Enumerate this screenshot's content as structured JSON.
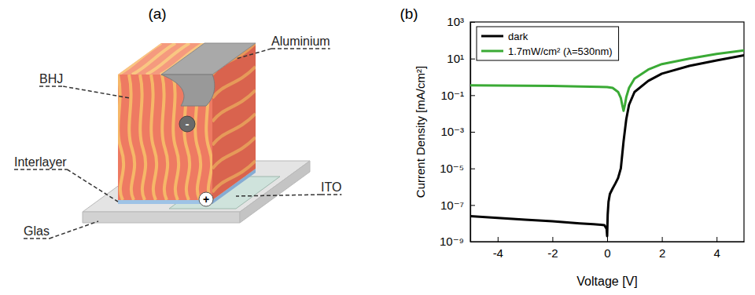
{
  "diagram": {
    "label": "(a)",
    "parts": {
      "bhj": "BHJ",
      "cathode": "Aluminium",
      "interlayer": "Interlayer",
      "anode": "ITO",
      "substrate": "Glas"
    },
    "charges": {
      "cathode": "-",
      "anode": "+"
    }
  },
  "chart_data": {
    "type": "line",
    "label": "(b)",
    "x_label": "Voltage [V]",
    "y_label": "Current Density [mA/cm²]",
    "log": "y",
    "legend": "upper left",
    "xlim": [
      -5,
      5
    ],
    "xticks": [
      -4,
      -2,
      0,
      2,
      4
    ],
    "ylim": [
      1e-09,
      1000
    ],
    "yticks": [
      {
        "value": 1e-09,
        "label": "10⁻⁹"
      },
      {
        "value": 1e-07,
        "label": "10⁻⁷"
      },
      {
        "value": 1e-05,
        "label": "10⁻⁵"
      },
      {
        "value": 0.001,
        "label": "10⁻³"
      },
      {
        "value": 0.1,
        "label": "10⁻¹"
      },
      {
        "value": 10,
        "label": "10¹"
      },
      {
        "value": 1000,
        "label": "10³"
      }
    ],
    "series": [
      {
        "name": "dark",
        "color": "#000000",
        "x": [
          -5,
          -4,
          -3,
          -2,
          -1,
          -0.5,
          -0.1,
          -0.02,
          0,
          0.02,
          0.05,
          0.1,
          0.2,
          0.3,
          0.4,
          0.5,
          0.6,
          0.7,
          0.8,
          1,
          1.5,
          2,
          3,
          4,
          5
        ],
        "values": [
          2.5e-08,
          2e-08,
          1.6e-08,
          1.3e-08,
          1e-08,
          9e-09,
          8e-09,
          5e-09,
          2e-09,
          3e-08,
          1.5e-07,
          4e-07,
          8e-07,
          1.5e-06,
          3e-06,
          1e-05,
          0.0003,
          0.005,
          0.03,
          0.15,
          0.6,
          1.5,
          4,
          8,
          15
        ]
      },
      {
        "name": "1.7mW/cm² (λ=530nm)",
        "color": "#3aaa35",
        "x": [
          -5,
          -4,
          -3,
          -2,
          -1,
          0,
          0.2,
          0.4,
          0.5,
          0.55,
          0.6,
          0.65,
          0.7,
          0.8,
          1,
          1.5,
          2,
          3,
          4,
          5
        ],
        "values": [
          0.35,
          0.34,
          0.33,
          0.32,
          0.3,
          0.28,
          0.25,
          0.15,
          0.07,
          0.03,
          0.014,
          0.03,
          0.08,
          0.25,
          0.8,
          2.5,
          5,
          10,
          18,
          28
        ]
      }
    ]
  }
}
